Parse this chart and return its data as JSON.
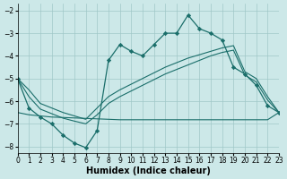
{
  "xlabel": "Humidex (Indice chaleur)",
  "xlim": [
    0,
    23
  ],
  "ylim": [
    -8.3,
    -1.7
  ],
  "yticks": [
    -8,
    -7,
    -6,
    -5,
    -4,
    -3,
    -2
  ],
  "xticks": [
    0,
    1,
    2,
    3,
    4,
    5,
    6,
    7,
    8,
    9,
    10,
    11,
    12,
    13,
    14,
    15,
    16,
    17,
    18,
    19,
    20,
    21,
    22,
    23
  ],
  "bg_color": "#cce8e8",
  "grid_color": "#a0c8c8",
  "line_color": "#1a6e6a",
  "main_y": [
    -5.0,
    -6.3,
    -6.7,
    -7.0,
    -7.5,
    -7.85,
    -8.05,
    -7.3,
    -4.2,
    -3.5,
    -3.8,
    -4.0,
    -3.5,
    -3.0,
    -3.0,
    -2.2,
    -2.8,
    -3.0,
    -3.3,
    -4.5,
    -4.8,
    -5.3,
    -6.2,
    -6.5
  ],
  "upper_y": [
    -5.0,
    -5.5,
    -6.1,
    -6.3,
    -6.5,
    -6.65,
    -6.8,
    -6.3,
    -5.8,
    -5.5,
    -5.25,
    -5.0,
    -4.75,
    -4.5,
    -4.3,
    -4.1,
    -3.95,
    -3.8,
    -3.65,
    -3.55,
    -4.7,
    -5.0,
    -5.8,
    -6.5
  ],
  "mid_y": [
    -5.0,
    -5.8,
    -6.35,
    -6.55,
    -6.75,
    -6.88,
    -7.0,
    -6.6,
    -6.1,
    -5.8,
    -5.55,
    -5.3,
    -5.05,
    -4.8,
    -4.6,
    -4.4,
    -4.2,
    -4.0,
    -3.85,
    -3.75,
    -4.85,
    -5.15,
    -5.95,
    -6.5
  ],
  "low_y": [
    -6.5,
    -6.6,
    -6.65,
    -6.7,
    -6.72,
    -6.74,
    -6.76,
    -6.78,
    -6.8,
    -6.82,
    -6.82,
    -6.82,
    -6.82,
    -6.82,
    -6.82,
    -6.82,
    -6.82,
    -6.82,
    -6.82,
    -6.82,
    -6.82,
    -6.82,
    -6.82,
    -6.5
  ]
}
